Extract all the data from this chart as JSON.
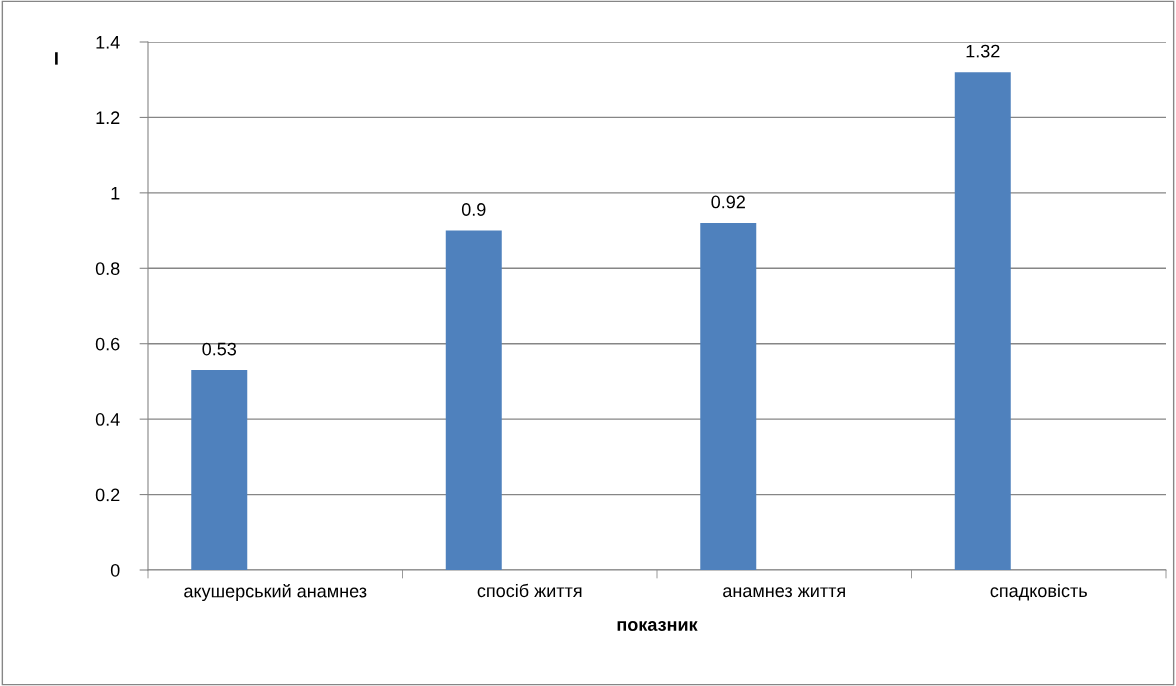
{
  "chart_data": {
    "type": "bar",
    "categories": [
      "акушерський анамнез",
      "спосіб життя",
      "анамнез життя",
      "спадковість"
    ],
    "values": [
      0.53,
      0.9,
      0.92,
      1.32
    ],
    "color": "#4f81bd",
    "xlabel": "показник",
    "ylabel": "I",
    "ylim": [
      0,
      1.4
    ],
    "yticks": [
      0,
      {
        "value": 0.2,
        "label": "0.2"
      },
      {
        "value": 0.4,
        "label": "0.4"
      },
      {
        "value": 0.6,
        "label": "0.6"
      },
      {
        "value": 0.8,
        "label": "0.8"
      },
      1,
      {
        "value": 1.2,
        "label": "1.2"
      },
      {
        "value": 1.4,
        "label": "1.4"
      }
    ],
    "grid": "y",
    "data_labels": true,
    "legend": false
  }
}
